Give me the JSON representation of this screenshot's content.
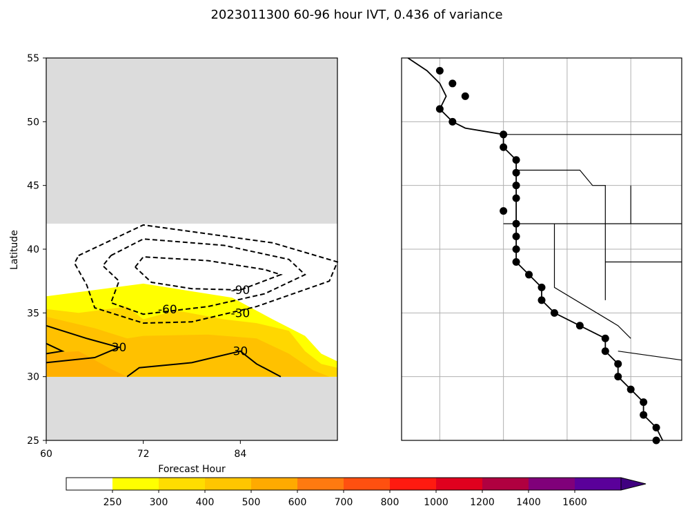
{
  "title": "2023011300 60-96 hour IVT, 0.436 of variance",
  "chart_data": [
    {
      "type": "contour",
      "xlabel": "Forecast Hour",
      "ylabel": "Latitude",
      "xlim": [
        60,
        96
      ],
      "ylim": [
        25,
        55
      ],
      "x_ticks": [
        60,
        72,
        84
      ],
      "y_ticks": [
        25,
        30,
        35,
        40,
        45,
        50,
        55
      ],
      "data_lat_range": [
        30,
        42
      ],
      "no_data_color": "#dcdcdc",
      "filled_levels": [
        {
          "lower": 250,
          "color": "#ffff00",
          "region": [
            [
              60,
              36.3
            ],
            [
              72,
              37.3
            ],
            [
              83,
              36.2
            ],
            [
              88,
              34.5
            ],
            [
              92,
              33.2
            ],
            [
              94,
              31.8
            ],
            [
              96,
              31.2
            ],
            [
              96,
              30
            ],
            [
              60,
              30
            ]
          ]
        },
        {
          "lower": 300,
          "color": "#ffd700",
          "region": [
            [
              60,
              35.3
            ],
            [
              64,
              35
            ],
            [
              70,
              35.5
            ],
            [
              72,
              34.5
            ],
            [
              76,
              35.2
            ],
            [
              82,
              34.5
            ],
            [
              86,
              34.2
            ],
            [
              90,
              33.6
            ],
            [
              92,
              32
            ],
            [
              94,
              31
            ],
            [
              96,
              30.7
            ],
            [
              96,
              30
            ],
            [
              60,
              30
            ]
          ]
        },
        {
          "lower": 400,
          "color": "#ffc100",
          "region": [
            [
              60,
              34.7
            ],
            [
              66,
              33.8
            ],
            [
              70,
              33
            ],
            [
              72,
              33.2
            ],
            [
              80,
              33.3
            ],
            [
              86,
              33
            ],
            [
              90,
              31.8
            ],
            [
              93,
              30.5
            ],
            [
              95,
              30
            ],
            [
              60,
              30
            ]
          ]
        },
        {
          "lower": 500,
          "color": "#ffb000",
          "region": [
            [
              60,
              31.8
            ],
            [
              64,
              32
            ],
            [
              68,
              30.6
            ],
            [
              70,
              30
            ],
            [
              60,
              30
            ]
          ]
        }
      ],
      "contours": [
        {
          "level": -30,
          "style": "dashed",
          "label": "-30",
          "label_at": [
            84,
            35
          ],
          "path": [
            [
              64,
              39.5
            ],
            [
              72,
              41.9
            ],
            [
              88,
              40.5
            ],
            [
              96,
              39
            ],
            [
              95,
              37.5
            ],
            [
              86,
              35.5
            ],
            [
              78,
              34.3
            ],
            [
              72,
              34.2
            ],
            [
              66,
              35.4
            ],
            [
              65,
              37.2
            ],
            [
              63.5,
              38.9
            ],
            [
              64,
              39.5
            ]
          ]
        },
        {
          "level": -60,
          "style": "dashed",
          "label": "-60",
          "label_at": [
            75,
            35.3
          ],
          "path": [
            [
              68,
              39.5
            ],
            [
              72,
              40.8
            ],
            [
              82,
              40.3
            ],
            [
              90,
              39.2
            ],
            [
              92,
              38
            ],
            [
              87,
              36.5
            ],
            [
              80,
              35.5
            ],
            [
              72,
              34.9
            ],
            [
              68,
              35.8
            ],
            [
              69,
              37.5
            ],
            [
              67,
              38.7
            ],
            [
              68,
              39.5
            ]
          ]
        },
        {
          "level": -90,
          "style": "dashed",
          "label": "-90",
          "label_at": [
            84,
            36.8
          ],
          "path": [
            [
              71,
              38.6
            ],
            [
              72,
              39.4
            ],
            [
              80,
              39.1
            ],
            [
              87,
              38.4
            ],
            [
              89,
              38
            ],
            [
              84,
              36.8
            ],
            [
              78,
              36.9
            ],
            [
              73,
              37.4
            ],
            [
              71,
              38.6
            ]
          ]
        },
        {
          "level": 30,
          "style": "solid",
          "label": "30",
          "label_at": [
            84,
            32
          ],
          "path": [
            [
              70,
              30
            ],
            [
              71.5,
              30.7
            ],
            [
              78,
              31.1
            ],
            [
              84,
              32
            ],
            [
              86,
              31
            ],
            [
              89,
              30
            ]
          ]
        },
        {
          "level": 30,
          "style": "solid",
          "label": "30",
          "label_at": [
            69,
            32.3
          ],
          "path": [
            [
              60,
              34
            ],
            [
              65,
              33
            ],
            [
              69,
              32.3
            ],
            [
              66,
              31.5
            ],
            [
              60,
              31.1
            ]
          ]
        },
        {
          "level": 30,
          "style": "solid",
          "label": "",
          "label_at": [
            62,
            32
          ],
          "path": [
            [
              60,
              32.6
            ],
            [
              62,
              32
            ],
            [
              60,
              31.8
            ]
          ]
        }
      ]
    },
    {
      "type": "map",
      "projection": "PlateCarree",
      "grid": true,
      "grid_lon": [
        -125,
        -120,
        -115,
        -110
      ],
      "grid_lat": [
        30,
        35,
        40,
        45,
        50
      ],
      "lon_range": [
        -128,
        -106
      ],
      "lat_range": [
        25,
        55
      ],
      "points": [
        {
          "lon": -125,
          "lat": 54
        },
        {
          "lon": -124,
          "lat": 53
        },
        {
          "lon": -123,
          "lat": 52
        },
        {
          "lon": -125,
          "lat": 51
        },
        {
          "lon": -124,
          "lat": 50
        },
        {
          "lon": -120,
          "lat": 49
        },
        {
          "lon": -120,
          "lat": 48
        },
        {
          "lon": -119,
          "lat": 47
        },
        {
          "lon": -119,
          "lat": 46
        },
        {
          "lon": -119,
          "lat": 45
        },
        {
          "lon": -119,
          "lat": 44
        },
        {
          "lon": -120,
          "lat": 43
        },
        {
          "lon": -119,
          "lat": 42
        },
        {
          "lon": -119,
          "lat": 41
        },
        {
          "lon": -119,
          "lat": 40
        },
        {
          "lon": -119,
          "lat": 39
        },
        {
          "lon": -118,
          "lat": 38
        },
        {
          "lon": -117,
          "lat": 37
        },
        {
          "lon": -117,
          "lat": 36
        },
        {
          "lon": -116,
          "lat": 35
        },
        {
          "lon": -114,
          "lat": 34
        },
        {
          "lon": -112,
          "lat": 33
        },
        {
          "lon": -112,
          "lat": 32
        },
        {
          "lon": -111,
          "lat": 31
        },
        {
          "lon": -111,
          "lat": 30
        },
        {
          "lon": -110,
          "lat": 29
        },
        {
          "lon": -109,
          "lat": 28
        },
        {
          "lon": -109,
          "lat": 27
        },
        {
          "lon": -108,
          "lat": 26
        },
        {
          "lon": -108,
          "lat": 25
        }
      ]
    }
  ],
  "colorbar": {
    "tick_labels": [
      "250",
      "300",
      "400",
      "500",
      "600",
      "700",
      "800",
      "1000",
      "1200",
      "1400",
      "1600"
    ],
    "colors": [
      "#ffffff",
      "#ffff00",
      "#ffdd00",
      "#ffc600",
      "#ffaa00",
      "#ff7a10",
      "#ff5010",
      "#ff1a10",
      "#e0001e",
      "#b00040",
      "#80007a",
      "#5a009a",
      "#400080"
    ]
  }
}
